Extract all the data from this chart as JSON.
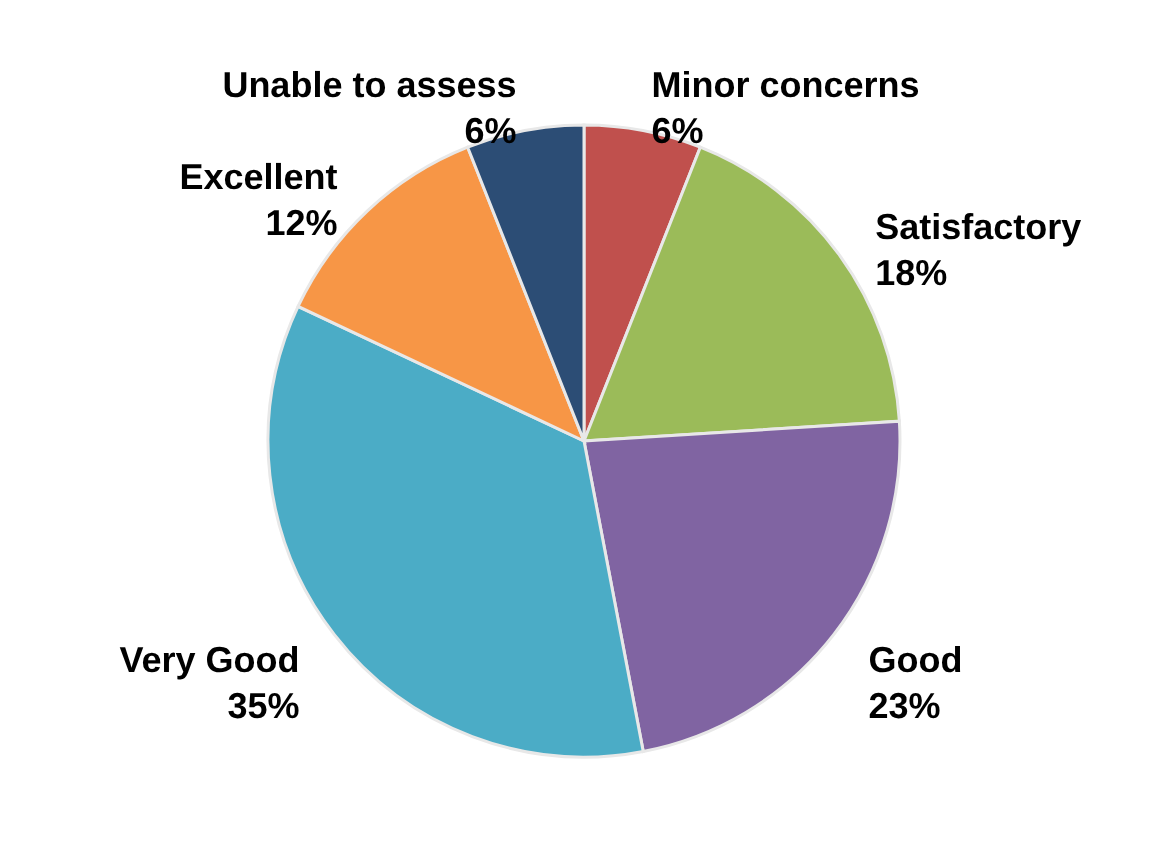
{
  "chart_data": {
    "type": "pie",
    "categories": [
      "Minor concerns",
      "Satisfactory",
      "Good",
      "Very Good",
      "Excellent",
      "Unable to assess"
    ],
    "values": [
      6,
      18,
      23,
      35,
      12,
      6
    ],
    "value_labels": [
      "6%",
      "18%",
      "23%",
      "35%",
      "12%",
      "6%"
    ],
    "colors": [
      "#c0504d",
      "#9bbb59",
      "#8064a2",
      "#4bacc6",
      "#f79646",
      "#2c4d75"
    ]
  }
}
